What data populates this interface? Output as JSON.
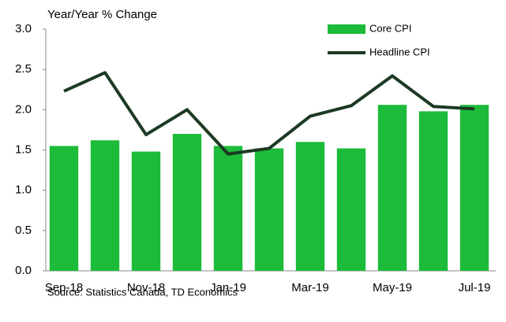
{
  "chart_data": {
    "type": "bar_line",
    "title": "Year/Year % Change",
    "source": "Source: Statistics Canada, TD Economics",
    "categories": [
      "Sep-18",
      null,
      "Nov-18",
      null,
      "Jan-19",
      null,
      "Mar-19",
      null,
      "May-19",
      null,
      "Jul-19"
    ],
    "series": [
      {
        "name": "Core CPI",
        "type": "bar",
        "color": "#1cbb3a",
        "values": [
          1.55,
          1.62,
          1.48,
          1.7,
          1.55,
          1.52,
          1.6,
          1.52,
          2.06,
          1.98,
          2.06
        ]
      },
      {
        "name": "Headline CPI",
        "type": "line",
        "color": "#1c3a24",
        "values": [
          2.23,
          2.46,
          1.69,
          2.0,
          1.45,
          1.52,
          1.92,
          2.05,
          2.42,
          2.04,
          2.01
        ]
      }
    ],
    "ylim": [
      0,
      3
    ],
    "yticks": [
      {
        "value": 0,
        "label": "0.0"
      },
      0.5,
      {
        "value": 1,
        "label": "1.0"
      },
      1.5,
      {
        "value": 2,
        "label": "2.0"
      },
      2.5,
      {
        "value": 3,
        "label": "3.0"
      }
    ],
    "legend": "top-right"
  }
}
